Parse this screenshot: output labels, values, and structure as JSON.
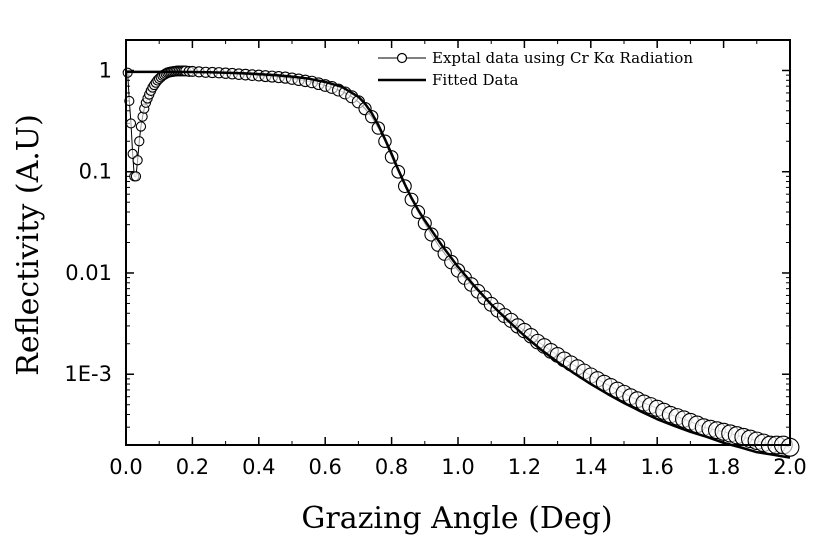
{
  "chart_data": {
    "type": "scatter",
    "xlabel": "Grazing Angle (Deg)",
    "ylabel": "Reflectivity (A.U)",
    "xlim": [
      0.0,
      2.0
    ],
    "ylim": [
      0.0002,
      2.0
    ],
    "y_scale": "log",
    "grid": false,
    "legend_position": "top-right",
    "x_ticks": [
      0.0,
      0.2,
      0.4,
      0.6,
      0.8,
      1.0,
      1.2,
      1.4,
      1.6,
      1.8,
      2.0
    ],
    "x_tick_labels": [
      "0.0",
      "0.2",
      "0.4",
      "0.6",
      "0.8",
      "1.0",
      "1.2",
      "1.4",
      "1.6",
      "1.8",
      "2.0"
    ],
    "y_ticks": [
      1,
      0.1,
      0.01,
      0.001
    ],
    "y_tick_labels": [
      "1",
      "0.1",
      "0.01",
      "1E-3"
    ],
    "series": [
      {
        "name": "Exptal data using Cr Kα Radiation",
        "style": "open-circles",
        "x": [
          0.005,
          0.01,
          0.015,
          0.02,
          0.025,
          0.03,
          0.035,
          0.04,
          0.045,
          0.05,
          0.055,
          0.06,
          0.065,
          0.07,
          0.075,
          0.08,
          0.085,
          0.09,
          0.095,
          0.1,
          0.105,
          0.11,
          0.115,
          0.12,
          0.125,
          0.13,
          0.135,
          0.14,
          0.145,
          0.15,
          0.155,
          0.16,
          0.165,
          0.17,
          0.175,
          0.18,
          0.19,
          0.2,
          0.22,
          0.24,
          0.26,
          0.28,
          0.3,
          0.32,
          0.34,
          0.36,
          0.38,
          0.4,
          0.42,
          0.44,
          0.46,
          0.48,
          0.5,
          0.52,
          0.54,
          0.56,
          0.58,
          0.6,
          0.62,
          0.64,
          0.66,
          0.68,
          0.7,
          0.72,
          0.74,
          0.76,
          0.78,
          0.8,
          0.82,
          0.84,
          0.86,
          0.88,
          0.9,
          0.92,
          0.94,
          0.96,
          0.98,
          1.0,
          1.02,
          1.04,
          1.06,
          1.08,
          1.1,
          1.12,
          1.14,
          1.16,
          1.18,
          1.2,
          1.22,
          1.24,
          1.26,
          1.28,
          1.3,
          1.32,
          1.34,
          1.36,
          1.38,
          1.4,
          1.42,
          1.44,
          1.46,
          1.48,
          1.5,
          1.52,
          1.54,
          1.56,
          1.58,
          1.6,
          1.62,
          1.64,
          1.66,
          1.68,
          1.7,
          1.72,
          1.74,
          1.76,
          1.78,
          1.8,
          1.82,
          1.84,
          1.86,
          1.88,
          1.9,
          1.92,
          1.94,
          1.96,
          1.98,
          2.0
        ],
        "y": [
          0.95,
          0.5,
          0.3,
          0.15,
          0.09,
          0.09,
          0.13,
          0.2,
          0.28,
          0.35,
          0.42,
          0.48,
          0.53,
          0.58,
          0.63,
          0.68,
          0.72,
          0.76,
          0.8,
          0.83,
          0.86,
          0.89,
          0.91,
          0.93,
          0.95,
          0.96,
          0.97,
          0.975,
          0.98,
          0.985,
          0.99,
          0.99,
          0.99,
          0.99,
          0.99,
          0.99,
          0.98,
          0.98,
          0.97,
          0.96,
          0.955,
          0.95,
          0.94,
          0.93,
          0.92,
          0.91,
          0.9,
          0.89,
          0.88,
          0.87,
          0.86,
          0.85,
          0.83,
          0.81,
          0.79,
          0.77,
          0.74,
          0.71,
          0.68,
          0.64,
          0.6,
          0.55,
          0.49,
          0.42,
          0.35,
          0.27,
          0.2,
          0.14,
          0.1,
          0.072,
          0.053,
          0.04,
          0.031,
          0.024,
          0.019,
          0.0155,
          0.0128,
          0.0106,
          0.009,
          0.0077,
          0.0066,
          0.0057,
          0.0049,
          0.0043,
          0.0038,
          0.0034,
          0.003,
          0.0027,
          0.0024,
          0.0021,
          0.0019,
          0.0017,
          0.00155,
          0.0014,
          0.00128,
          0.00117,
          0.00106,
          0.00097,
          0.00089,
          0.00082,
          0.00076,
          0.0007,
          0.00065,
          0.0006,
          0.00056,
          0.00052,
          0.00049,
          0.00046,
          0.00043,
          0.0004,
          0.00038,
          0.00036,
          0.00034,
          0.00032,
          0.0003,
          0.00029,
          0.00028,
          0.00027,
          0.00026,
          0.00025,
          0.00024,
          0.00023,
          0.00022,
          0.00021,
          0.0002,
          0.0002,
          0.0002,
          0.00019
        ]
      },
      {
        "name": "Fitted Data",
        "style": "solid-line",
        "x": [
          0.0,
          0.05,
          0.1,
          0.15,
          0.2,
          0.25,
          0.3,
          0.35,
          0.4,
          0.45,
          0.5,
          0.55,
          0.6,
          0.65,
          0.7,
          0.72,
          0.74,
          0.76,
          0.78,
          0.8,
          0.82,
          0.84,
          0.86,
          0.88,
          0.9,
          0.95,
          1.0,
          1.05,
          1.1,
          1.15,
          1.2,
          1.25,
          1.3,
          1.35,
          1.4,
          1.45,
          1.5,
          1.55,
          1.6,
          1.65,
          1.7,
          1.75,
          1.8,
          1.85,
          1.9,
          1.95,
          2.0
        ],
        "y": [
          0.97,
          0.97,
          0.97,
          0.97,
          0.965,
          0.96,
          0.95,
          0.94,
          0.92,
          0.9,
          0.87,
          0.83,
          0.77,
          0.69,
          0.55,
          0.47,
          0.38,
          0.29,
          0.21,
          0.15,
          0.105,
          0.075,
          0.055,
          0.042,
          0.033,
          0.019,
          0.0115,
          0.0074,
          0.0049,
          0.0034,
          0.0024,
          0.00175,
          0.00132,
          0.00102,
          0.0008,
          0.00064,
          0.00052,
          0.00043,
          0.00036,
          0.00031,
          0.00027,
          0.00024,
          0.00021,
          0.00019,
          0.00017,
          0.00016,
          0.00015
        ]
      }
    ]
  }
}
